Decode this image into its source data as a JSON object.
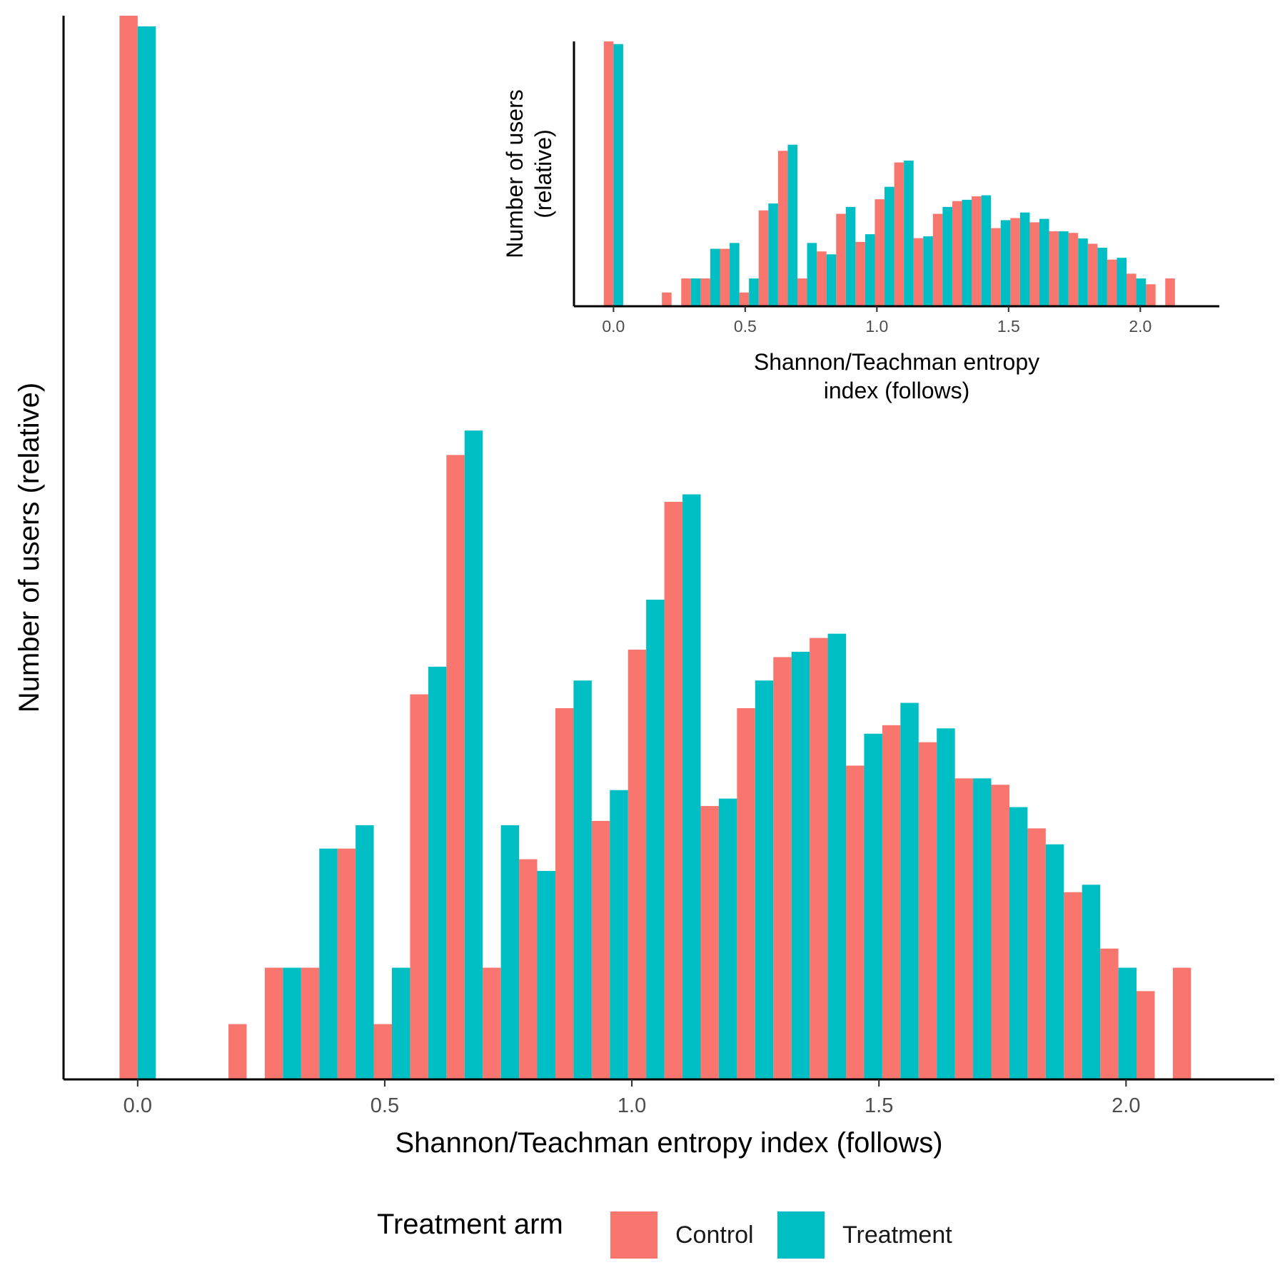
{
  "chart_data": {
    "type": "bar",
    "title": "",
    "xlabel": "Shannon/Teachman entropy index (follows)",
    "ylabel": "Number of users (relative)",
    "xlim": [
      -0.15,
      2.3
    ],
    "ylim": [
      0,
      1.0
    ],
    "x_ticks": [
      {
        "value": 0.0,
        "label": "0.0"
      },
      {
        "value": 0.5,
        "label": "0.5"
      },
      {
        "value": 1.0,
        "label": "1.0"
      },
      {
        "value": 1.5,
        "label": "1.5"
      },
      {
        "value": 2.0,
        "label": "2.0"
      }
    ],
    "bin_width": 0.0735,
    "bin_centers": [
      0.0,
      0.0735,
      0.147,
      0.2205,
      0.294,
      0.3675,
      0.441,
      0.5145,
      0.588,
      0.6615,
      0.735,
      0.8085,
      0.882,
      0.9555,
      1.029,
      1.1025,
      1.176,
      1.2495,
      1.323,
      1.3965,
      1.47,
      1.5435,
      1.617,
      1.6905,
      1.764,
      1.8375,
      1.911,
      1.9845,
      2.058,
      2.1315
    ],
    "grid": false,
    "legend": {
      "title": "Treatment arm",
      "position": "bottom"
    },
    "series": [
      {
        "name": "Control",
        "color": "#F8766D",
        "values": [
          1.0,
          0,
          0,
          0.052,
          0.105,
          0.105,
          0.217,
          0.052,
          0.362,
          0.587,
          0.105,
          0.207,
          0.349,
          0.243,
          0.404,
          0.543,
          0.257,
          0.349,
          0.397,
          0.415,
          0.295,
          0.333,
          0.317,
          0.283,
          0.277,
          0.236,
          0.176,
          0.123,
          0.083,
          0.105
        ]
      },
      {
        "name": "Treatment",
        "color": "#00BFC4",
        "values": [
          0.99,
          0,
          0,
          0,
          0.105,
          0.217,
          0.239,
          0.105,
          0.388,
          0.61,
          0.239,
          0.196,
          0.375,
          0.272,
          0.451,
          0.55,
          0.264,
          0.375,
          0.402,
          0.419,
          0.325,
          0.354,
          0.33,
          0.283,
          0.256,
          0.221,
          0.183,
          0.105,
          0,
          0
        ]
      }
    ]
  },
  "inset_chart": {
    "type": "bar",
    "xlabel_lines": [
      "Shannon/Teachman entropy",
      "index (follows)"
    ],
    "ylabel_lines": [
      "Number of users",
      "(relative)"
    ]
  },
  "legend": {
    "title": "Treatment arm",
    "items": [
      {
        "label": "Control",
        "color": "#F8766D"
      },
      {
        "label": "Treatment",
        "color": "#00BFC4"
      }
    ]
  }
}
